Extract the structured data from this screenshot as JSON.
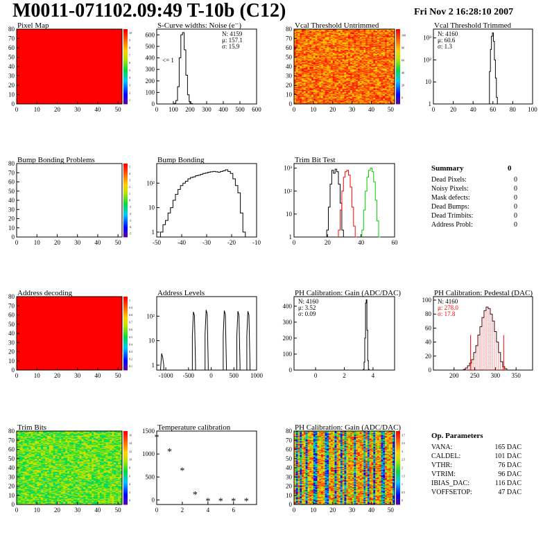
{
  "header": {
    "title": "M0011-071102.09:49 T-10b (C12)",
    "date": "Fri Nov  2 16:28:10 2007"
  },
  "colors": {
    "red": "#ff0000",
    "black": "#000000",
    "green": "#00cc00"
  },
  "chart_data": [
    {
      "id": "pixel-map",
      "type": "heatmap",
      "title": "Pixel Map",
      "xlim": [
        0,
        52
      ],
      "ylim": [
        0,
        80
      ],
      "xticks": [
        0,
        10,
        20,
        30,
        40,
        50
      ],
      "yticks": [
        0,
        10,
        20,
        30,
        40,
        50,
        60,
        70,
        80
      ],
      "fill": "uniform-red",
      "palette": "rainbow",
      "zticks": [
        "1",
        "2",
        "3",
        "4",
        "5",
        "6",
        "7",
        "8",
        "9",
        "10"
      ]
    },
    {
      "id": "scurve",
      "type": "histogram",
      "title": "S-Curve widths: Noise (e⁻)",
      "xlim": [
        0,
        600
      ],
      "xticks": [
        0,
        100,
        200,
        300,
        400,
        500,
        600
      ],
      "ylim": [
        0,
        650
      ],
      "yticks": [
        0,
        100,
        200,
        300,
        400,
        500,
        600
      ],
      "stats": [
        "N: 4159",
        "μ: 157.1",
        "σ: 15.9"
      ],
      "annotation": "<= 1",
      "x": [
        110,
        120,
        130,
        140,
        150,
        160,
        170,
        180,
        190,
        200,
        210
      ],
      "values": [
        5,
        30,
        150,
        400,
        600,
        620,
        470,
        250,
        80,
        20,
        3
      ]
    },
    {
      "id": "vcal-untrimmed",
      "type": "heatmap",
      "title": "Vcal Threshold Untrimmed",
      "xlim": [
        0,
        52
      ],
      "ylim": [
        0,
        80
      ],
      "xticks": [
        0,
        10,
        20,
        30,
        40,
        50
      ],
      "yticks": [
        0,
        10,
        20,
        30,
        40,
        50,
        60,
        70,
        80
      ],
      "fill": "noise-orange",
      "palette": "rainbow",
      "zticks": [
        "0",
        "20",
        "40",
        "60",
        "80",
        "100"
      ]
    },
    {
      "id": "vcal-trimmed",
      "type": "histogram",
      "title": "Vcal Threshold Trimmed",
      "log": true,
      "xlim": [
        0,
        100
      ],
      "xticks": [
        0,
        20,
        40,
        60,
        80,
        100
      ],
      "yticks": [
        "1",
        "10",
        "10²",
        "10³"
      ],
      "stats": [
        "N: 4160",
        "μ: 60.6",
        "σ:  1.3"
      ],
      "x": [
        57,
        58,
        59,
        60,
        61,
        62,
        63,
        64
      ],
      "values": [
        30,
        300,
        1200,
        1700,
        700,
        100,
        15,
        2
      ]
    },
    {
      "id": "bump-problems",
      "type": "heatmap",
      "title": "Bump Bonding Problems",
      "xlim": [
        0,
        52
      ],
      "ylim": [
        0,
        80
      ],
      "xticks": [
        0,
        10,
        20,
        30,
        40,
        50
      ],
      "yticks": [
        0,
        10,
        20,
        30,
        40,
        50,
        60,
        70,
        80
      ],
      "fill": "empty",
      "palette": "rainbow",
      "zticks": [
        "-5",
        "-4",
        "-3",
        "-2",
        "-1",
        "0",
        "1",
        "2",
        "3",
        "4",
        "5"
      ]
    },
    {
      "id": "bump-bonding",
      "type": "histogram",
      "title": "Bump Bonding",
      "log": true,
      "xlim": [
        -50,
        -10
      ],
      "xticks": [
        -50,
        -40,
        -30,
        -20,
        -10
      ],
      "yticks": [
        "1",
        "10",
        "10²"
      ],
      "x": [
        -48,
        -47,
        -46,
        -45,
        -44,
        -43,
        -42,
        -41,
        -40,
        -39,
        -38,
        -37,
        -36,
        -35,
        -34,
        -33,
        -32,
        -31,
        -30,
        -29,
        -28,
        -27,
        -26,
        -25,
        -24,
        -23,
        -22,
        -21,
        -20,
        -19,
        -18,
        -17,
        -16,
        -15
      ],
      "values": [
        1,
        2,
        3,
        6,
        10,
        20,
        35,
        55,
        80,
        100,
        120,
        150,
        170,
        180,
        200,
        210,
        230,
        250,
        260,
        280,
        290,
        300,
        290,
        280,
        300,
        320,
        350,
        300,
        250,
        150,
        80,
        40,
        6,
        1
      ]
    },
    {
      "id": "trim-bit-test",
      "type": "histogram",
      "title": "Trim Bit Test",
      "log": true,
      "xlim": [
        0,
        60
      ],
      "xticks": [
        0,
        20,
        40,
        60
      ],
      "yticks": [
        "1",
        "10",
        "10²",
        "10³"
      ],
      "series": [
        {
          "color": "#000000",
          "x": [
            20,
            21,
            22,
            23,
            24,
            25,
            26,
            27,
            28,
            29
          ],
          "values": [
            2,
            20,
            200,
            800,
            600,
            900,
            700,
            200,
            30,
            2
          ]
        },
        {
          "color": "#ff0000",
          "x": [
            27,
            28,
            29,
            30,
            31,
            32,
            33,
            34,
            35,
            36,
            37
          ],
          "values": [
            2,
            15,
            100,
            400,
            700,
            800,
            500,
            150,
            20,
            3,
            1
          ]
        },
        {
          "color": "#00cc00",
          "x": [
            41,
            42,
            43,
            44,
            45,
            46,
            47,
            48,
            49,
            50,
            51
          ],
          "values": [
            2,
            15,
            100,
            400,
            800,
            1000,
            700,
            250,
            40,
            5,
            1
          ]
        }
      ]
    },
    {
      "id": "address-decoding",
      "type": "heatmap",
      "title": "Address decoding",
      "xlim": [
        0,
        52
      ],
      "ylim": [
        0,
        80
      ],
      "xticks": [
        0,
        10,
        20,
        30,
        40,
        50
      ],
      "yticks": [
        0,
        10,
        20,
        30,
        40,
        50,
        60,
        70,
        80
      ],
      "fill": "uniform-red",
      "palette": "rainbow",
      "zticks": [
        "0.1",
        "0.2",
        "0.3",
        "0.4",
        "0.5",
        "0.6",
        "0.7",
        "0.8",
        "0.9",
        "1"
      ]
    },
    {
      "id": "address-levels",
      "type": "histogram",
      "title": "Address Levels",
      "log": true,
      "xlim": [
        -1200,
        1000
      ],
      "xticks": [
        -1000,
        -500,
        0,
        500,
        1000
      ],
      "yticks": [
        "1",
        "10",
        "10²"
      ],
      "peaks": [
        -1080,
        -380,
        -100,
        300,
        600,
        820
      ],
      "peak_values": [
        3,
        150,
        180,
        170,
        160,
        160
      ]
    },
    {
      "id": "ph-gain",
      "type": "histogram",
      "title": "PH Calibration: Gain (ADC/DAC)",
      "xlim": [
        -1.5,
        5.5
      ],
      "xticks": [
        0,
        2,
        4
      ],
      "ylim": [
        0,
        460
      ],
      "yticks": [
        0,
        100,
        200,
        300,
        400
      ],
      "stats": [
        "N: 4160",
        "μ: 3.52",
        "σ: 0.09"
      ],
      "x": [
        3.35,
        3.4,
        3.45,
        3.5,
        3.55,
        3.6,
        3.65,
        3.7
      ],
      "values": [
        5,
        50,
        200,
        420,
        440,
        250,
        60,
        5
      ]
    },
    {
      "id": "ph-pedestal",
      "type": "histogram",
      "title": "PH Calibration: Pedestal (DAC)",
      "xlim": [
        150,
        390
      ],
      "xticks": [
        200,
        250,
        300,
        350
      ],
      "ylim": [
        0,
        105
      ],
      "yticks": [
        0,
        20,
        40,
        60,
        80,
        100
      ],
      "stats": [
        "N: 4160",
        "μ: 278.0",
        "σ: 17.8"
      ],
      "x": [
        225,
        230,
        235,
        240,
        245,
        250,
        255,
        260,
        265,
        270,
        275,
        280,
        285,
        290,
        295,
        300,
        305,
        310,
        315,
        320,
        325
      ],
      "values": [
        1,
        3,
        6,
        10,
        15,
        25,
        35,
        50,
        62,
        75,
        85,
        90,
        88,
        80,
        70,
        55,
        40,
        25,
        12,
        5,
        2
      ]
    },
    {
      "id": "trim-bits",
      "type": "heatmap",
      "title": "Trim Bits",
      "xlim": [
        0,
        52
      ],
      "ylim": [
        0,
        80
      ],
      "xticks": [
        0,
        10,
        20,
        30,
        40,
        50
      ],
      "yticks": [
        0,
        10,
        20,
        30,
        40,
        50,
        60,
        70,
        80
      ],
      "fill": "noise-green",
      "palette": "rainbow",
      "zticks": [
        "0",
        "2",
        "4",
        "6",
        "8",
        "10",
        "12",
        "14",
        "16"
      ]
    },
    {
      "id": "temp-calibration",
      "type": "scatter",
      "title": "Temperature calibration",
      "xlim": [
        0,
        7.8
      ],
      "xticks": [
        0,
        2,
        4,
        6
      ],
      "ylim": [
        -100,
        1500
      ],
      "yticks": [
        0,
        500,
        1000,
        1500
      ],
      "x": [
        0,
        1,
        2,
        3,
        4,
        5,
        6,
        7
      ],
      "values": [
        1370,
        1060,
        650,
        130,
        -20,
        -20,
        -20,
        -20
      ]
    },
    {
      "id": "ph-gain-map",
      "type": "heatmap",
      "title": "PH Calibration: Gain (ADC/DAC)",
      "xlim": [
        0,
        52
      ],
      "ylim": [
        0,
        80
      ],
      "xticks": [
        0,
        10,
        20,
        30,
        40,
        50
      ],
      "yticks": [
        0,
        10,
        20,
        30,
        40,
        50,
        60,
        70,
        80
      ],
      "fill": "stripes",
      "palette": "rainbow",
      "zticks": [
        "0",
        "0.5",
        "1",
        "1.5",
        "2",
        "2.5",
        "3",
        "3.5",
        "3.7"
      ]
    }
  ],
  "summary": {
    "title": "Summary",
    "total": "0",
    "rows": [
      {
        "label": "Dead Pixels:",
        "value": "0"
      },
      {
        "label": "Noisy Pixels:",
        "value": "0"
      },
      {
        "label": "Mask defects:",
        "value": "0"
      },
      {
        "label": "Dead Bumps:",
        "value": "0"
      },
      {
        "label": "Dead Trimbits:",
        "value": "0"
      },
      {
        "label": "Address Probl:",
        "value": "0"
      }
    ]
  },
  "op_params": {
    "title": "Op. Parameters",
    "rows": [
      {
        "label": "VANA:",
        "value": "165 DAC"
      },
      {
        "label": "CALDEL:",
        "value": "101 DAC"
      },
      {
        "label": "VTHR:",
        "value": "76 DAC"
      },
      {
        "label": "VTRIM:",
        "value": "96 DAC"
      },
      {
        "label": "IBIAS_DAC:",
        "value": "116 DAC"
      },
      {
        "label": "VOFFSETOP:",
        "value": "47 DAC"
      }
    ]
  }
}
